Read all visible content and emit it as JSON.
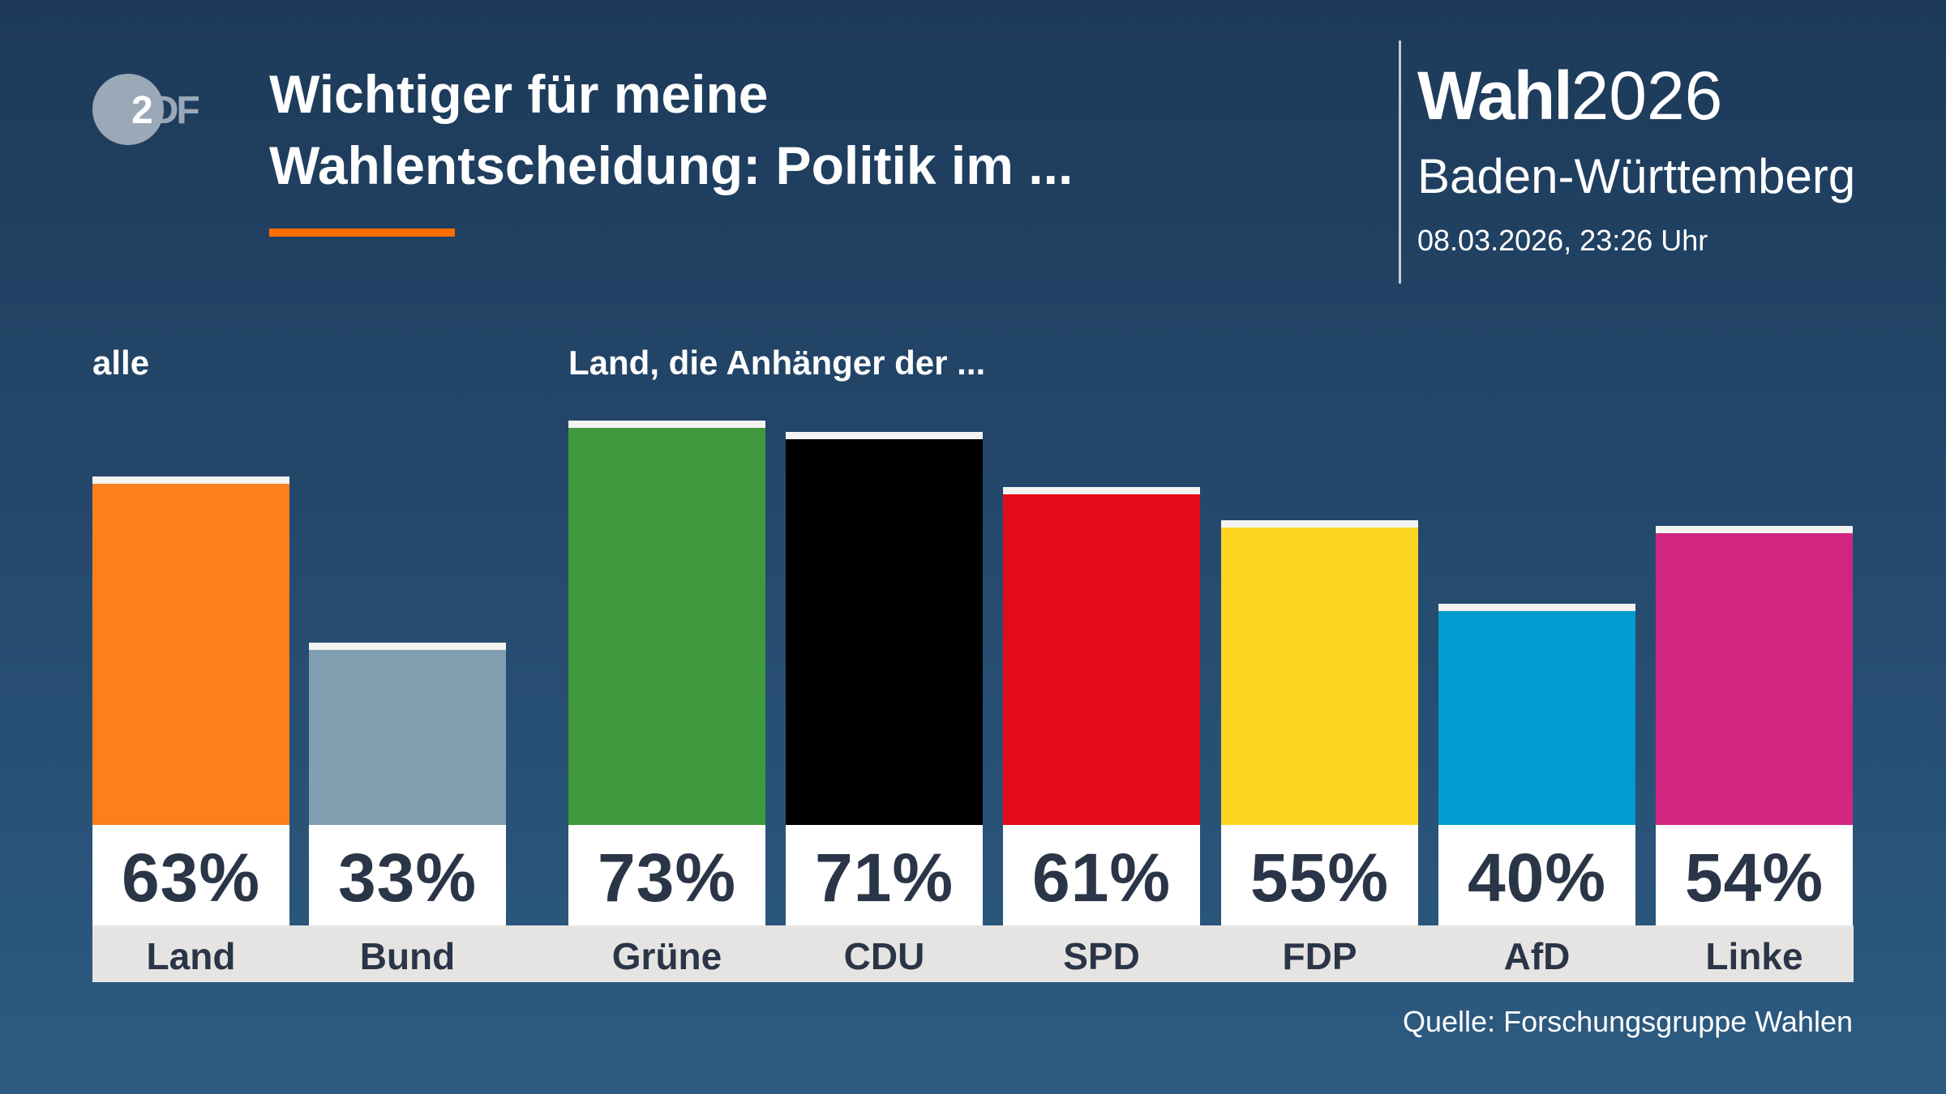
{
  "header": {
    "logo_text": "ZDF",
    "title_line1": "Wichtiger für meine",
    "title_line2": "Wahlentscheidung: Politik im ...",
    "brand_bold": "Wahl",
    "brand_year": "2026",
    "region": "Baden-Württemberg",
    "datetime": "08.03.2026, 23:26 Uhr",
    "accent_color": "#ff6e00"
  },
  "groups": {
    "all_label": "alle",
    "supporters_label": "Land, die Anhänger der ..."
  },
  "chart_data": {
    "type": "bar",
    "categories": [
      "Land",
      "Bund",
      "Grüne",
      "CDU",
      "SPD",
      "FDP",
      "AfD",
      "Linke"
    ],
    "values": [
      63,
      33,
      73,
      71,
      61,
      55,
      40,
      54
    ],
    "value_labels": [
      "63%",
      "33%",
      "73%",
      "71%",
      "61%",
      "55%",
      "40%",
      "54%"
    ],
    "colors": [
      "#fb7f1a",
      "#829fb1",
      "#3f993d",
      "#000000",
      "#e60b1b",
      "#fed521",
      "#009ccf",
      "#d12680"
    ],
    "unit": "%",
    "ylim": [
      0,
      100
    ],
    "grid": false
  },
  "footer": {
    "source": "Quelle: Forschungsgruppe Wahlen"
  }
}
